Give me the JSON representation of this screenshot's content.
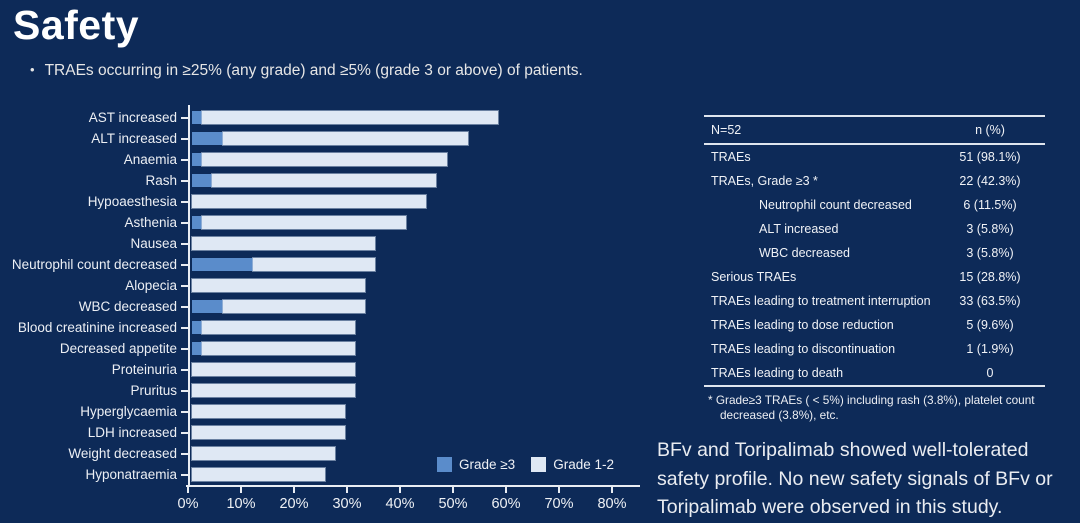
{
  "slide": {
    "title": "Safety",
    "bullet": "TRAEs occurring in ≥25% (any grade) and ≥5% (grade 3 or above) of patients.",
    "conclusion": "BFv and Toripalimab showed well-tolerated safety profile. No new safety signals of BFv or Toripalimab were observed in this study."
  },
  "colors": {
    "background": "#0d2a58",
    "grade3_blue": "#5a8ccb",
    "grade12_light": "#dfe8f4",
    "axis_white": "#e9edf3"
  },
  "chart_data": {
    "type": "bar",
    "orientation": "horizontal",
    "stacked": true,
    "categories": [
      "AST increased",
      "ALT increased",
      "Anaemia",
      "Rash",
      "Hypoaesthesia",
      "Asthenia",
      "Nausea",
      "Neutrophil count decreased",
      "Alopecia",
      "WBC decreased",
      "Blood creatinine increased",
      "Decreased appetite",
      "Proteinuria",
      "Pruritus",
      "Hyperglycaemia",
      "LDH increased",
      "Weight decreased",
      "Hyponatraemia"
    ],
    "series": [
      {
        "name": "Grade ≥3",
        "color": "#5a8ccb",
        "values": [
          1.9,
          5.8,
          1.9,
          3.8,
          0,
          1.9,
          0,
          11.5,
          0,
          5.8,
          1.9,
          1.9,
          0,
          0,
          0,
          0,
          0,
          0
        ]
      },
      {
        "name": "Grade 1-2",
        "color": "#dfe8f4",
        "values": [
          55.8,
          46.2,
          46.2,
          42.3,
          44.2,
          38.5,
          34.6,
          23.1,
          32.7,
          26.9,
          28.8,
          28.8,
          30.8,
          30.8,
          28.8,
          28.8,
          26.9,
          25.0
        ]
      }
    ],
    "xlim": [
      0,
      80
    ],
    "x_tick_labels": [
      "0%",
      "10%",
      "20%",
      "30%",
      "40%",
      "50%",
      "60%",
      "70%",
      "80%"
    ],
    "legend_position": "bottom-right-inside",
    "grid": false
  },
  "table": {
    "header": {
      "col_label": "N=52",
      "col_value": "n (%)"
    },
    "rows": [
      {
        "label": "TRAEs",
        "value": "51 (98.1%)",
        "indent": false
      },
      {
        "label": "TRAEs, Grade ≥3 *",
        "value": "22 (42.3%)",
        "indent": false
      },
      {
        "label": "Neutrophil count decreased",
        "value": "6 (11.5%)",
        "indent": true
      },
      {
        "label": "ALT increased",
        "value": "3 (5.8%)",
        "indent": true
      },
      {
        "label": "WBC decreased",
        "value": "3 (5.8%)",
        "indent": true
      },
      {
        "label": "Serious TRAEs",
        "value": "15 (28.8%)",
        "indent": false
      },
      {
        "label": "TRAEs leading to treatment interruption",
        "value": "33 (63.5%)",
        "indent": false
      },
      {
        "label": "TRAEs leading to dose reduction",
        "value": "5 (9.6%)",
        "indent": false
      },
      {
        "label": "TRAEs leading to discontinuation",
        "value": "1 (1.9%)",
        "indent": false
      },
      {
        "label": "TRAEs leading to death",
        "value": "0",
        "indent": false
      }
    ],
    "footnote": "* Grade≥3 TRAEs ( < 5%) including rash (3.8%), platelet count decreased (3.8%), etc."
  }
}
